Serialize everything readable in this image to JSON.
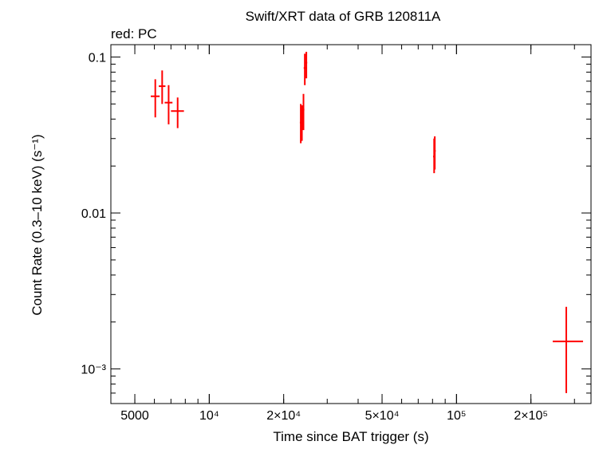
{
  "chart_data": {
    "type": "scatter",
    "title": "Swift/XRT data of GRB 120811A",
    "subtitle": "red: PC",
    "xlabel": "Time since BAT trigger (s)",
    "ylabel": "Count Rate (0.3–10 keV) (s⁻¹)",
    "x_scale": "log",
    "y_scale": "log",
    "xlim": [
      4000,
      350000
    ],
    "ylim": [
      0.0006,
      0.12
    ],
    "grid": false,
    "x_ticks": [
      {
        "value": 5000,
        "label": "5000"
      },
      {
        "value": 10000,
        "label": "10⁴"
      },
      {
        "value": 20000,
        "label": "2×10⁴"
      },
      {
        "value": 50000,
        "label": "5×10⁴"
      },
      {
        "value": 100000,
        "label": "10⁵"
      },
      {
        "value": 200000,
        "label": "2×10⁵"
      }
    ],
    "y_ticks": [
      {
        "value": 0.1,
        "label": "0.1"
      },
      {
        "value": 0.01,
        "label": "0.01"
      },
      {
        "value": 0.001,
        "label": "10⁻³"
      }
    ],
    "series": [
      {
        "name": "PC",
        "color": "#ff0000",
        "points": [
          {
            "x": 6050,
            "x_lo": 5800,
            "x_hi": 6300,
            "y": 0.056,
            "y_lo": 0.041,
            "y_hi": 0.072
          },
          {
            "x": 6450,
            "x_lo": 6250,
            "x_hi": 6650,
            "y": 0.065,
            "y_lo": 0.05,
            "y_hi": 0.082
          },
          {
            "x": 6850,
            "x_lo": 6600,
            "x_hi": 7100,
            "y": 0.051,
            "y_lo": 0.037,
            "y_hi": 0.066
          },
          {
            "x": 7450,
            "x_lo": 7000,
            "x_hi": 7900,
            "y": 0.045,
            "y_lo": 0.035,
            "y_hi": 0.055
          },
          {
            "x": 23450,
            "x_lo": 23250,
            "x_hi": 23650,
            "y": 0.038,
            "y_lo": 0.028,
            "y_hi": 0.05
          },
          {
            "x": 23700,
            "x_lo": 23500,
            "x_hi": 23900,
            "y": 0.039,
            "y_lo": 0.029,
            "y_hi": 0.049
          },
          {
            "x": 24050,
            "x_lo": 23850,
            "x_hi": 24250,
            "y": 0.046,
            "y_lo": 0.034,
            "y_hi": 0.058
          },
          {
            "x": 24350,
            "x_lo": 24100,
            "x_hi": 24600,
            "y": 0.085,
            "y_lo": 0.066,
            "y_hi": 0.105
          },
          {
            "x": 24700,
            "x_lo": 24500,
            "x_hi": 24900,
            "y": 0.092,
            "y_lo": 0.073,
            "y_hi": 0.108
          },
          {
            "x": 81200,
            "x_lo": 80400,
            "x_hi": 82000,
            "y": 0.023,
            "y_lo": 0.018,
            "y_hi": 0.03
          },
          {
            "x": 81700,
            "x_lo": 81000,
            "x_hi": 82400,
            "y": 0.025,
            "y_lo": 0.019,
            "y_hi": 0.031
          },
          {
            "x": 278000,
            "x_lo": 245000,
            "x_hi": 325000,
            "y": 0.0015,
            "y_lo": 0.0007,
            "y_hi": 0.0025
          }
        ]
      }
    ]
  }
}
